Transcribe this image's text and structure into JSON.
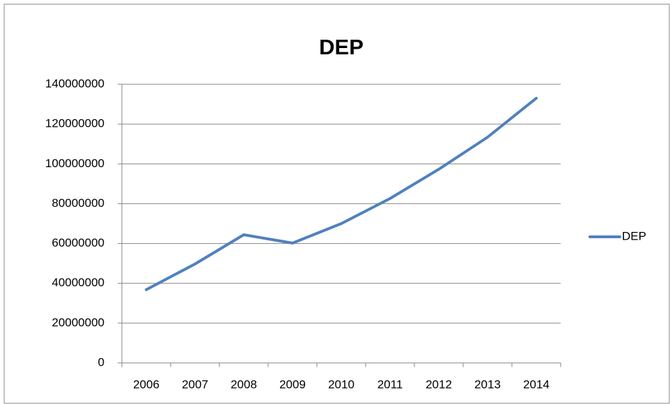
{
  "chart_data": {
    "type": "line",
    "title": "DEP",
    "categories": [
      "2006",
      "2007",
      "2008",
      "2009",
      "2010",
      "2011",
      "2012",
      "2013",
      "2014"
    ],
    "series": [
      {
        "name": "DEP",
        "color": "#4f81bd",
        "values": [
          36800000,
          49700000,
          64400000,
          60200000,
          70000000,
          82600000,
          97300000,
          113400000,
          133000000
        ]
      }
    ],
    "ylim": [
      0,
      140000000
    ],
    "yticks": [
      0,
      20000000,
      40000000,
      60000000,
      80000000,
      100000000,
      120000000,
      140000000
    ],
    "grid": true,
    "legend": "right"
  }
}
